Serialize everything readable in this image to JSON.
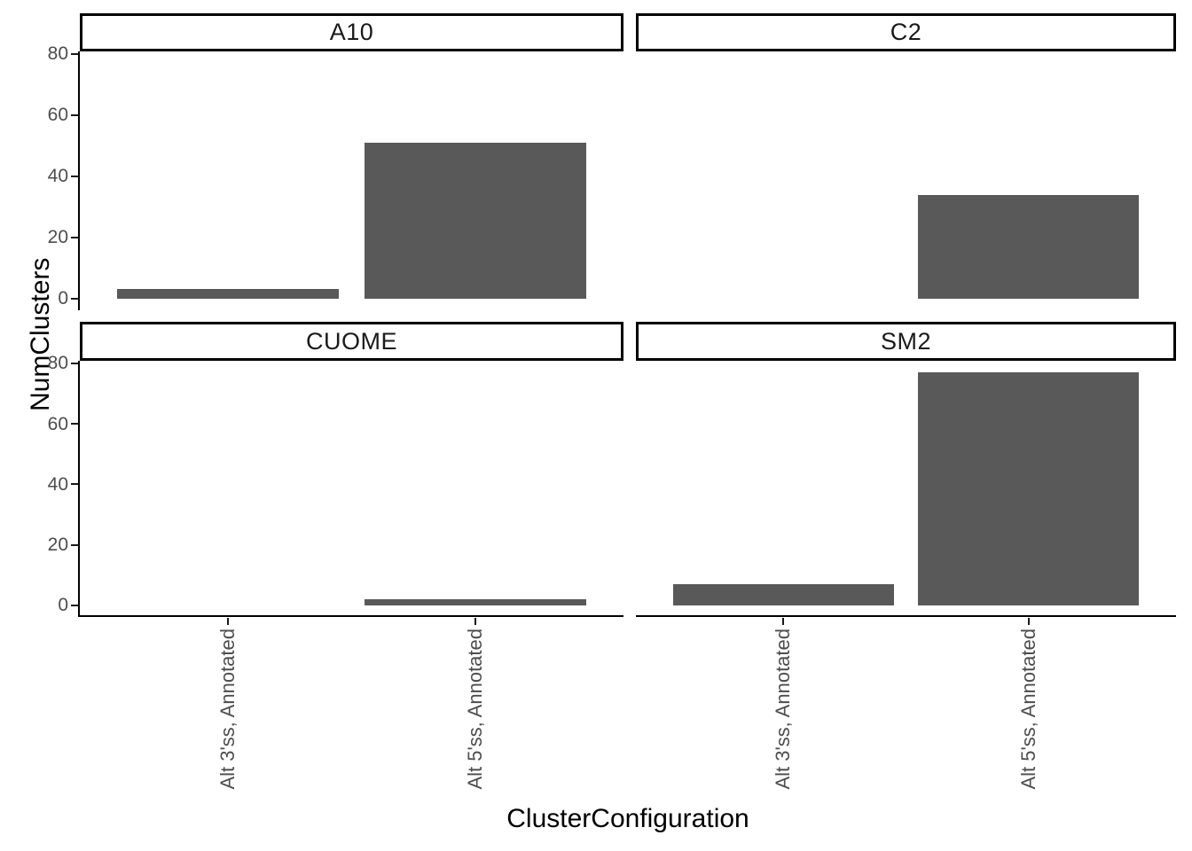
{
  "chart_data": {
    "type": "bar",
    "title": "",
    "xlabel": "ClusterConfiguration",
    "ylabel": "NumClusters",
    "categories": [
      "Alt 3'ss, Annotated",
      "Alt 5'ss, Annotated"
    ],
    "facets": [
      {
        "label": "A10",
        "values": [
          3,
          51
        ]
      },
      {
        "label": "C2",
        "values": [
          0,
          34
        ]
      },
      {
        "label": "CUOME",
        "values": [
          0,
          2
        ]
      },
      {
        "label": "SM2",
        "values": [
          7,
          77
        ]
      }
    ],
    "yticks": [
      0,
      20,
      40,
      60,
      80
    ],
    "ylim": [
      -3.85,
      80.85
    ],
    "bar_color": "#595959",
    "axis_text_color": "#4d4d4d",
    "axis_line_color": "#000000",
    "grid": "off",
    "legend_position": "none"
  }
}
